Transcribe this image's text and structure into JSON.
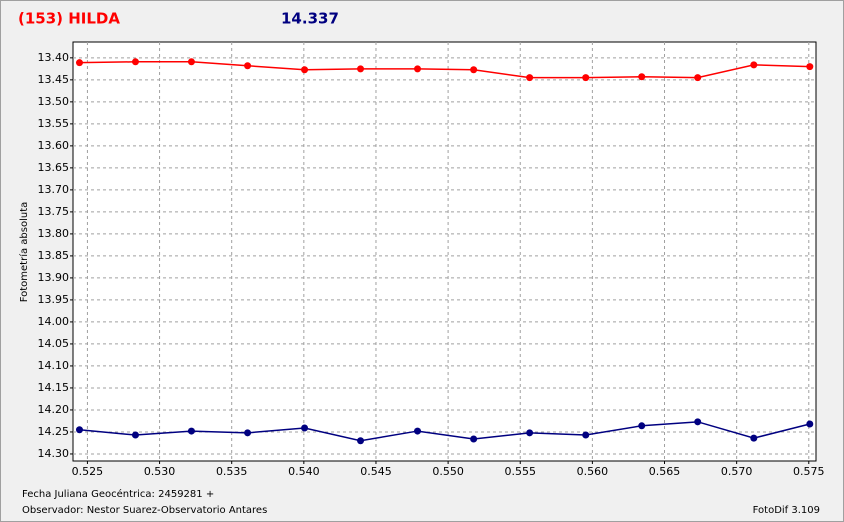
{
  "chart_data": {
    "type": "line",
    "title": "(153) HILDA",
    "subtitle": "14.337",
    "y_label": "Fotometría absoluta",
    "x_label": "Fecha Juliana Geocéntrica: 2459281 +",
    "observer": "Observador: Nestor Suarez-Observatorio Antares",
    "software": "FotoDif 3.109",
    "x": [
      0.52445,
      0.52833,
      0.53221,
      0.5361,
      0.54005,
      0.54393,
      0.54788,
      0.55177,
      0.55565,
      0.55954,
      0.56342,
      0.5673,
      0.57119,
      0.57507
    ],
    "series": [
      {
        "color": "#ff0000",
        "values": [
          13.411,
          13.409,
          13.409,
          13.418,
          13.427,
          13.425,
          13.425,
          13.427,
          13.445,
          13.445,
          13.443,
          13.445,
          13.416,
          13.42
        ]
      },
      {
        "color": "#000080",
        "values": [
          14.245,
          14.257,
          14.248,
          14.252,
          14.241,
          14.27,
          14.248,
          14.266,
          14.252,
          14.257,
          14.236,
          14.227,
          14.264,
          14.232
        ]
      }
    ],
    "xlim": [
      0.524,
      0.5755
    ],
    "xticks": [
      0.525,
      {
        "value": 0.53,
        "label": "0.530"
      },
      0.535,
      {
        "value": 0.54,
        "label": "0.540"
      },
      0.545,
      {
        "value": 0.55,
        "label": "0.550"
      },
      0.555,
      {
        "value": 0.56,
        "label": "0.560"
      },
      0.565,
      {
        "value": 0.57,
        "label": "0.570"
      },
      0.575
    ],
    "ylim": [
      13.364,
      14.316
    ],
    "y_inverted": true,
    "yticks": [
      {
        "value": 13.4,
        "label": "13.40"
      },
      13.45,
      {
        "value": 13.5,
        "label": "13.50"
      },
      13.55,
      {
        "value": 13.6,
        "label": "13.60"
      },
      13.65,
      {
        "value": 13.7,
        "label": "13.70"
      },
      13.75,
      {
        "value": 13.8,
        "label": "13.80"
      },
      13.85,
      {
        "value": 13.9,
        "label": "13.90"
      },
      13.95,
      {
        "value": 14,
        "label": "14.00"
      },
      14.05,
      {
        "value": 14.1,
        "label": "14.10"
      },
      14.15,
      {
        "value": 14.2,
        "label": "14.20"
      },
      14.25,
      {
        "value": 14.3,
        "label": "14.30"
      }
    ],
    "grid": true
  }
}
